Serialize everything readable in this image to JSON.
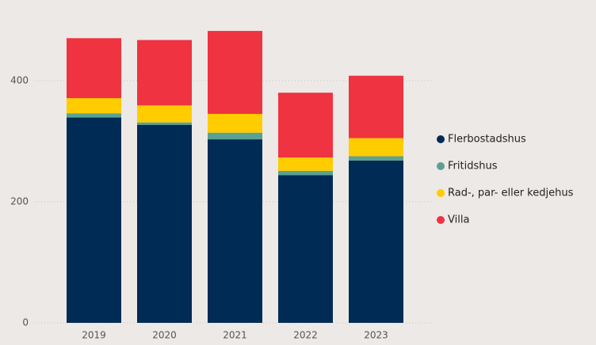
{
  "chart_data": {
    "type": "stacked_bar",
    "categories": [
      "2019",
      "2020",
      "2021",
      "2022",
      "2023"
    ],
    "series": [
      {
        "name": "Flerbostadshus",
        "color": "#002b55",
        "values": [
          339,
          327,
          303,
          244,
          268
        ]
      },
      {
        "name": "Fritidshus",
        "color": "#5aa192",
        "values": [
          7,
          4,
          11,
          7,
          7
        ]
      },
      {
        "name": "Rad-, par- eller kedjehus",
        "color": "#ffcc00",
        "values": [
          25,
          28,
          31,
          22,
          30
        ]
      },
      {
        "name": "Villa",
        "color": "#ef3340",
        "values": [
          99,
          108,
          137,
          107,
          103
        ]
      }
    ],
    "ylim": [
      0,
      520
    ],
    "yticks": [
      0,
      200,
      400
    ],
    "grid": true,
    "legend": "right"
  }
}
